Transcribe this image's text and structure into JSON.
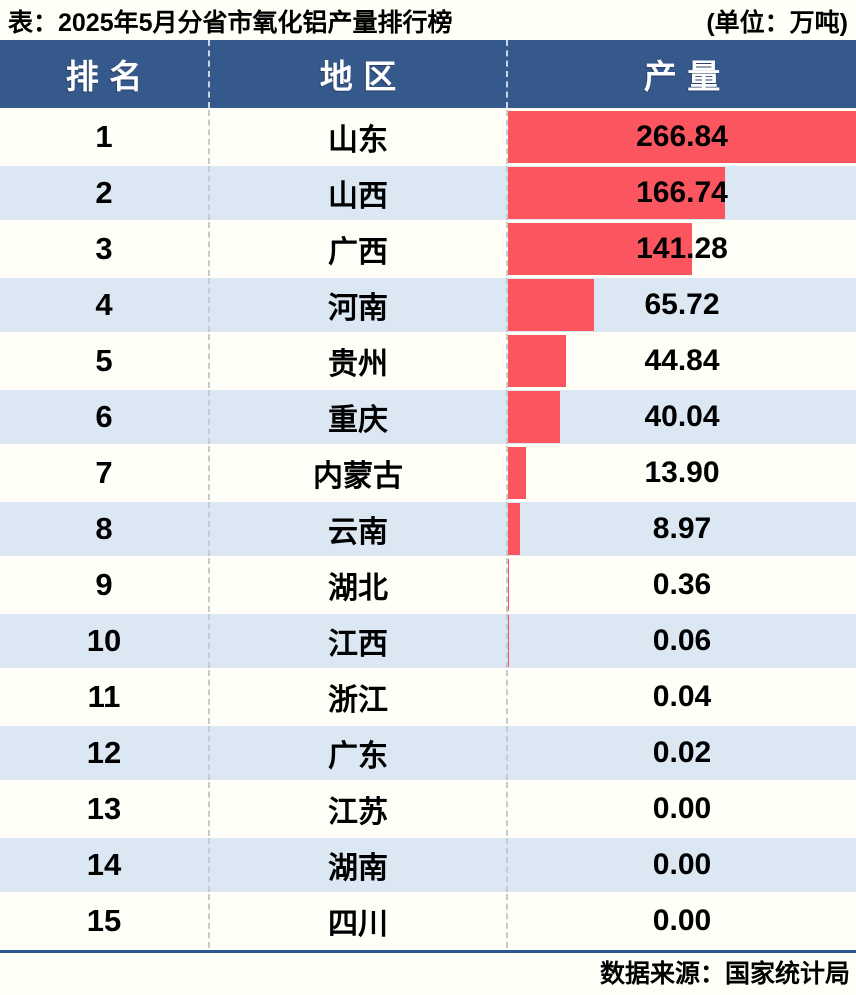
{
  "title": "表：2025年5月分省市氧化铝产量排行榜",
  "unit_label": "(单位：万吨)",
  "source_label": "数据来源：国家统计局",
  "colors": {
    "header_bg": "#36598C",
    "bar": "#FB5560",
    "row_alt": "#DBE8F4",
    "page_bg": "#FFFEF7",
    "footer_line": "#2E5696"
  },
  "table": {
    "columns": [
      "排名",
      "地区",
      "产量"
    ],
    "rows": [
      {
        "rank": "1",
        "region": "山东",
        "value": "266.84"
      },
      {
        "rank": "2",
        "region": "山西",
        "value": "166.74"
      },
      {
        "rank": "3",
        "region": "广西",
        "value": "141.28"
      },
      {
        "rank": "4",
        "region": "河南",
        "value": "65.72"
      },
      {
        "rank": "5",
        "region": "贵州",
        "value": "44.84"
      },
      {
        "rank": "6",
        "region": "重庆",
        "value": "40.04"
      },
      {
        "rank": "7",
        "region": "内蒙古",
        "value": "13.90"
      },
      {
        "rank": "8",
        "region": "云南",
        "value": "8.97"
      },
      {
        "rank": "9",
        "region": "湖北",
        "value": "0.36"
      },
      {
        "rank": "10",
        "region": "江西",
        "value": "0.06"
      },
      {
        "rank": "11",
        "region": "浙江",
        "value": "0.04"
      },
      {
        "rank": "12",
        "region": "广东",
        "value": "0.02"
      },
      {
        "rank": "13",
        "region": "江苏",
        "value": "0.00"
      },
      {
        "rank": "14",
        "region": "湖南",
        "value": "0.00"
      },
      {
        "rank": "15",
        "region": "四川",
        "value": "0.00"
      }
    ]
  },
  "chart_data": {
    "type": "bar",
    "orientation": "horizontal",
    "title": "2025年5月分省市氧化铝产量排行榜",
    "unit": "万吨",
    "xlabel": "产量",
    "ylabel": "地区",
    "categories": [
      "山东",
      "山西",
      "广西",
      "河南",
      "贵州",
      "重庆",
      "内蒙古",
      "云南",
      "湖北",
      "江西",
      "浙江",
      "广东",
      "江苏",
      "湖南",
      "四川"
    ],
    "values": [
      266.84,
      166.74,
      141.28,
      65.72,
      44.84,
      40.04,
      13.9,
      8.97,
      0.36,
      0.06,
      0.04,
      0.02,
      0.0,
      0.0,
      0.0
    ],
    "ranks": [
      1,
      2,
      3,
      4,
      5,
      6,
      7,
      8,
      9,
      10,
      11,
      12,
      13,
      14,
      15
    ],
    "xlim": [
      0,
      266.84
    ],
    "grid": false,
    "legend": false,
    "bar_color": "#FB5560",
    "source": "数据来源：国家统计局"
  }
}
